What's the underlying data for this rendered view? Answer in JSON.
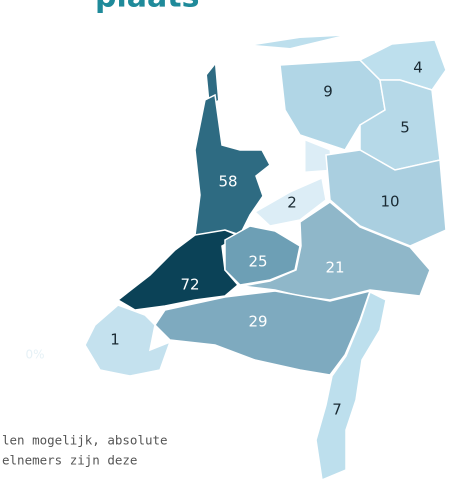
{
  "title": "plaats",
  "outside_label": "0%",
  "regions": [
    {
      "value": 9,
      "color": "#b1d6e6"
    },
    {
      "value": 4,
      "color": "#bddfed"
    },
    {
      "value": 5,
      "color": "#b6d9e8"
    },
    {
      "value": 58,
      "color": "#2e6b82"
    },
    {
      "value": 2,
      "color": "#dcedf6"
    },
    {
      "value": 10,
      "color": "#aacfe0"
    },
    {
      "value": 72,
      "color": "#0b4257"
    },
    {
      "value": 25,
      "color": "#6d9fb5"
    },
    {
      "value": 21,
      "color": "#8fb7c9"
    },
    {
      "value": 29,
      "color": "#7eaabf"
    },
    {
      "value": 1,
      "color": "#c4e1ee"
    },
    {
      "value": 7,
      "color": "#bddfed"
    }
  ],
  "note_lines": [
    "len mogelijk, absolute",
    "elnemers zijn deze"
  ]
}
